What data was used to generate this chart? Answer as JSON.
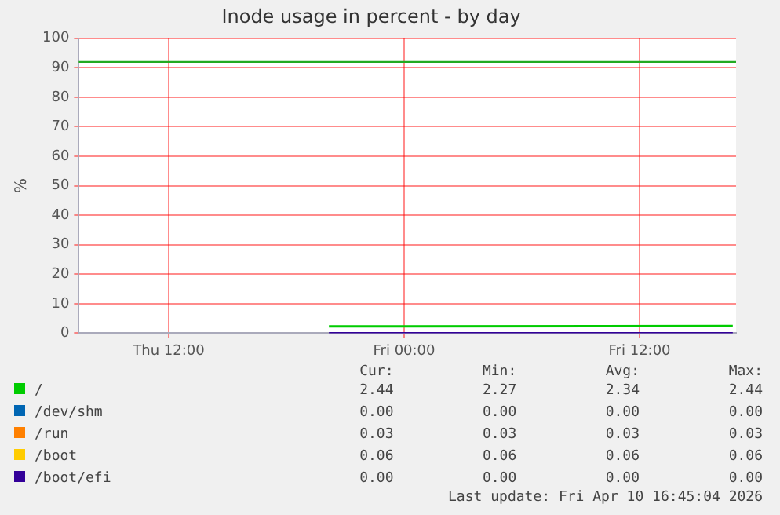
{
  "chart_data": {
    "type": "line",
    "title": "Inode usage in percent - by day",
    "ylabel": "%",
    "xlim": [
      "2026-04-09T07:25",
      "2026-04-10T16:55"
    ],
    "xticks": [
      {
        "value": "2026-04-09T12:00",
        "label": "Thu 12:00"
      },
      {
        "value": "2026-04-10T00:00",
        "label": "Fri 00:00"
      },
      {
        "value": "2026-04-10T12:00",
        "label": "Fri 12:00"
      }
    ],
    "ylim": [
      0,
      100
    ],
    "yticks": [
      0,
      10,
      20,
      30,
      40,
      50,
      60,
      70,
      80,
      90,
      100
    ],
    "grid": true,
    "legend": "bottom",
    "marker": "none",
    "line_style": "solid",
    "ref_lines": [
      {
        "axis": "y",
        "value": 92,
        "label": null,
        "color": "#22aa22"
      }
    ],
    "series": [
      {
        "name": "/",
        "color": "#00cc00",
        "x": [
          "2026-04-09T20:10",
          "2026-04-10T16:45"
        ],
        "values": [
          2.27,
          2.44
        ]
      },
      {
        "name": "/dev/shm",
        "color": "#0066b3"
      },
      {
        "name": "/run",
        "color": "#ff8000"
      },
      {
        "name": "/boot",
        "color": "#ffcc00"
      },
      {
        "name": "/boot/efi",
        "color": "#330099",
        "x": [
          "2026-04-09T20:10",
          "2026-04-10T16:45"
        ],
        "values": [
          0,
          0
        ]
      }
    ],
    "annotations": [
      "Cur:",
      "Min:",
      "Avg:",
      "Max:",
      "2.44",
      "2.27",
      "2.34",
      "2.44",
      "0.00",
      "0.00",
      "0.00",
      "0.00",
      "0.03",
      "0.03",
      "0.03",
      "0.03",
      "0.06",
      "0.06",
      "0.06",
      "0.06",
      "0.00",
      "0.00",
      "0.00",
      "0.00",
      "Last update: Fri Apr 10 16:45:04 2026"
    ]
  }
}
